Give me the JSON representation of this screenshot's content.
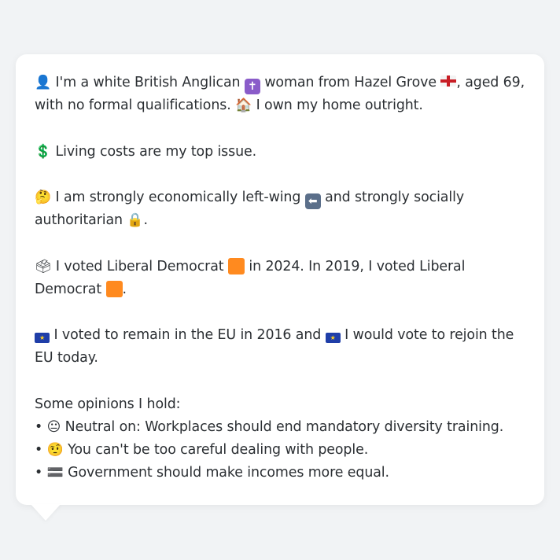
{
  "profile": {
    "p1_a": "I'm a white British Anglican",
    "p1_b": "woman from Hazel Grove",
    "p1_c": ", aged 69, with no formal qualifications.",
    "p1_d": "I own my home outright.",
    "p2": "Living costs are my top issue.",
    "p3_a": "I am strongly economically left-wing",
    "p3_b": "and strongly socially authoritarian",
    "p3_c": ".",
    "p4_a": "I voted Liberal Democrat",
    "p4_b": "in 2024. In 2019, I voted Liberal Democrat",
    "p4_c": ".",
    "p5_a": "I voted to remain in the EU in 2016 and",
    "p5_b": "I would vote to rejoin the EU today."
  },
  "opinions": {
    "heading": "Some opinions I hold:",
    "bullet": "•",
    "items": [
      {
        "text": "Neutral on: Workplaces should end mandatory diversity training.",
        "icon": "neutral-face-icon"
      },
      {
        "text": "You can't be too careful dealing with people.",
        "icon": "raised-eyebrow-face-icon"
      },
      {
        "text": "Government should make incomes more equal.",
        "icon": "equals-icon"
      }
    ]
  },
  "icons": {
    "person": "👤",
    "thinking": "🤔",
    "dollar": "💲",
    "ballot": "🗳",
    "neutral": "😐",
    "skeptical": "🤨",
    "equals": "🟰",
    "house": "🏠",
    "cross": "✝",
    "left_arrow": "⬅",
    "lock": "🔒",
    "eu_stars": "★"
  },
  "colors": {
    "page_bg": "#f1f3f5",
    "bubble_bg": "#ffffff",
    "text": "#2b2f33",
    "libdem_orange": "#ff8a1f",
    "eu_blue": "#1f3ea8",
    "cross_purple": "#8a5cc9",
    "arrow_blue": "#5b6f8a"
  }
}
